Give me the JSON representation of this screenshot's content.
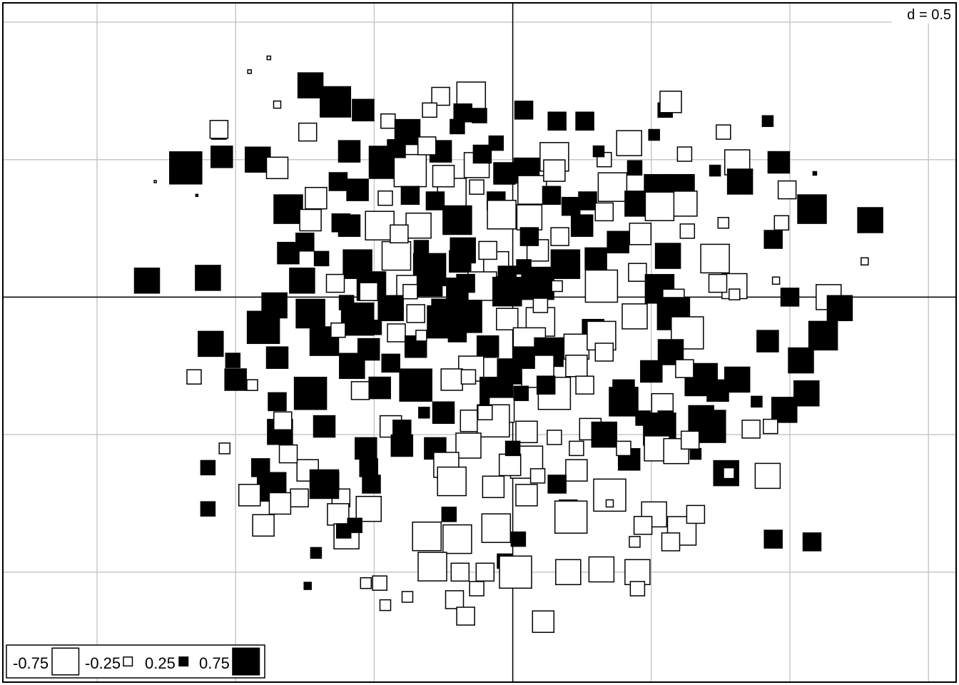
{
  "chart_data": {
    "type": "scatter",
    "subtype": "value-squares",
    "scale_label": "d = 0.5",
    "grid_step": 0.5,
    "x_range": [
      -1.84,
      1.6
    ],
    "y_range": [
      -1.4,
      1.07
    ],
    "grid": true,
    "legend_placement": "bottom-left",
    "legend": [
      {
        "label": "-0.75",
        "value": -0.75
      },
      {
        "label": "-0.25",
        "value": -0.25
      },
      {
        "label": "0.25",
        "value": 0.25
      },
      {
        "label": "0.75",
        "value": 0.75
      }
    ],
    "encoding": "square side proportional to |value|; white fill = negative, black fill = positive",
    "points": [
      [
        -0.88,
        0.87,
        -0.1
      ],
      [
        -0.73,
        0.77,
        0.7
      ],
      [
        -0.64,
        0.71,
        0.85
      ],
      [
        -0.54,
        0.68,
        0.6
      ],
      [
        -0.15,
        0.73,
        -0.8
      ],
      [
        0.04,
        0.68,
        0.5
      ],
      [
        -0.74,
        0.6,
        -0.5
      ],
      [
        -0.45,
        0.64,
        -0.4
      ],
      [
        -0.38,
        0.6,
        0.7
      ],
      [
        -0.18,
        0.67,
        0.5
      ],
      [
        0.26,
        0.64,
        0.5
      ],
      [
        0.42,
        0.56,
        -0.7
      ],
      [
        0.51,
        0.59,
        0.3
      ],
      [
        -1.06,
        0.6,
        -0.4
      ],
      [
        -0.92,
        0.5,
        0.7
      ],
      [
        -0.85,
        0.47,
        -0.6
      ],
      [
        -0.59,
        0.53,
        0.6
      ],
      [
        -0.46,
        0.49,
        0.9
      ],
      [
        -0.37,
        0.46,
        -0.9
      ],
      [
        -0.26,
        0.53,
        0.6
      ],
      [
        -0.13,
        0.48,
        -0.7
      ],
      [
        -0.03,
        0.45,
        0.6
      ],
      [
        0.05,
        0.46,
        0.7
      ],
      [
        0.15,
        0.51,
        -0.8
      ],
      [
        0.33,
        0.5,
        -0.4
      ],
      [
        0.62,
        0.52,
        -0.4
      ],
      [
        0.73,
        0.46,
        0.3
      ],
      [
        -0.71,
        0.36,
        -0.6
      ],
      [
        -0.56,
        0.39,
        0.6
      ],
      [
        -0.46,
        0.36,
        -0.4
      ],
      [
        -0.37,
        0.37,
        0.5
      ],
      [
        -0.22,
        0.38,
        -0.8
      ],
      [
        -0.06,
        0.35,
        0.5
      ],
      [
        0.07,
        0.39,
        -0.8
      ],
      [
        0.27,
        0.35,
        0.5
      ],
      [
        0.36,
        0.4,
        -0.8
      ],
      [
        0.45,
        0.34,
        0.7
      ],
      [
        0.61,
        0.4,
        0.7
      ],
      [
        0.62,
        0.34,
        -0.7
      ],
      [
        -0.81,
        0.32,
        0.8
      ],
      [
        -0.73,
        0.28,
        -0.6
      ],
      [
        -0.59,
        0.26,
        0.6
      ],
      [
        -0.48,
        0.26,
        -0.8
      ],
      [
        -0.34,
        0.26,
        -0.7
      ],
      [
        -0.2,
        0.28,
        0.8
      ],
      [
        -0.04,
        0.3,
        -0.8
      ],
      [
        0.06,
        0.29,
        -0.7
      ],
      [
        0.25,
        0.26,
        0.6
      ],
      [
        0.38,
        0.2,
        0.6
      ],
      [
        0.46,
        0.23,
        -0.6
      ],
      [
        0.63,
        0.24,
        -0.4
      ],
      [
        -0.75,
        0.2,
        0.5
      ],
      [
        -0.56,
        0.12,
        0.8
      ],
      [
        -0.42,
        0.15,
        -0.8
      ],
      [
        -0.3,
        0.1,
        0.9
      ],
      [
        -0.19,
        0.13,
        0.6
      ],
      [
        -0.06,
        0.12,
        -0.7
      ],
      [
        0.09,
        0.17,
        -0.6
      ],
      [
        0.19,
        0.12,
        0.8
      ],
      [
        0.3,
        0.14,
        0.6
      ],
      [
        0.45,
        0.09,
        -0.5
      ],
      [
        0.56,
        0.15,
        0.7
      ],
      [
        0.73,
        0.14,
        -0.8
      ],
      [
        -0.76,
        0.06,
        0.7
      ],
      [
        -0.64,
        0.05,
        -0.5
      ],
      [
        -0.51,
        0.04,
        0.8
      ],
      [
        -0.38,
        0.04,
        -0.6
      ],
      [
        -0.3,
        0.05,
        0.7
      ],
      [
        -0.2,
        0.03,
        0.6
      ],
      [
        -0.11,
        0.04,
        -0.8
      ],
      [
        -0.02,
        0.02,
        0.8
      ],
      [
        0.09,
        0.05,
        0.9
      ],
      [
        0.32,
        0.04,
        -0.9
      ],
      [
        0.53,
        0.03,
        0.8
      ],
      [
        0.58,
        -0.01,
        -0.6
      ],
      [
        0.8,
        0.04,
        -0.7
      ],
      [
        -1.1,
        0.07,
        0.7
      ],
      [
        -0.86,
        -0.03,
        0.7
      ],
      [
        -0.73,
        -0.06,
        0.8
      ],
      [
        -0.56,
        -0.08,
        0.9
      ],
      [
        -0.44,
        -0.04,
        0.7
      ],
      [
        -0.25,
        -0.09,
        0.9
      ],
      [
        -0.17,
        -0.07,
        0.9
      ],
      [
        -0.02,
        -0.08,
        -0.6
      ],
      [
        0.1,
        -0.09,
        -0.8
      ],
      [
        0.29,
        -0.12,
        0.6
      ],
      [
        0.44,
        -0.07,
        -0.7
      ],
      [
        0.58,
        -0.06,
        0.9
      ],
      [
        0.63,
        -0.13,
        -0.9
      ],
      [
        -0.9,
        -0.11,
        0.9
      ],
      [
        -0.68,
        -0.16,
        0.8
      ],
      [
        -0.52,
        -0.19,
        0.6
      ],
      [
        -0.42,
        -0.13,
        -0.5
      ],
      [
        -0.35,
        -0.18,
        0.6
      ],
      [
        -0.09,
        -0.18,
        0.6
      ],
      [
        0.06,
        -0.17,
        -0.9
      ],
      [
        0.13,
        -0.2,
        0.8
      ],
      [
        0.23,
        -0.18,
        -0.7
      ],
      [
        0.32,
        -0.14,
        -0.8
      ],
      [
        0.57,
        -0.2,
        0.7
      ],
      [
        0.92,
        -0.16,
        0.6
      ],
      [
        1.12,
        -0.14,
        0.8
      ],
      [
        -0.85,
        -0.22,
        0.6
      ],
      [
        -0.58,
        -0.25,
        0.7
      ],
      [
        -0.15,
        -0.26,
        -0.7
      ],
      [
        -0.01,
        -0.27,
        0.7
      ],
      [
        0.09,
        -0.27,
        -0.9
      ],
      [
        0.23,
        -0.25,
        -0.6
      ],
      [
        0.4,
        -0.34,
        0.6
      ],
      [
        0.5,
        -0.27,
        0.6
      ],
      [
        -0.73,
        -0.35,
        0.9
      ],
      [
        -0.55,
        -0.34,
        -0.5
      ],
      [
        -0.48,
        -0.33,
        0.6
      ],
      [
        -0.35,
        -0.32,
        0.9
      ],
      [
        -0.22,
        -0.3,
        -0.6
      ],
      [
        -0.06,
        -0.35,
        0.9
      ],
      [
        -0.04,
        -0.41,
        -0.7
      ],
      [
        0.15,
        -0.35,
        -0.9
      ],
      [
        0.4,
        -0.38,
        0.8
      ],
      [
        0.54,
        -0.39,
        -0.6
      ],
      [
        0.81,
        -0.3,
        0.7
      ],
      [
        0.98,
        -0.41,
        0.7
      ],
      [
        -0.44,
        -0.47,
        -0.6
      ],
      [
        -0.25,
        -0.42,
        0.6
      ],
      [
        -0.15,
        -0.45,
        -0.6
      ],
      [
        -0.07,
        -0.45,
        -0.9
      ],
      [
        0.05,
        -0.49,
        -0.6
      ],
      [
        0.28,
        -0.48,
        -0.6
      ],
      [
        0.33,
        -0.5,
        0.7
      ],
      [
        0.53,
        -0.48,
        0.9
      ],
      [
        -0.84,
        -0.49,
        0.7
      ],
      [
        -0.68,
        -0.47,
        0.6
      ],
      [
        -0.53,
        -0.55,
        0.6
      ],
      [
        -0.4,
        -0.54,
        0.6
      ],
      [
        -0.28,
        -0.55,
        0.6
      ],
      [
        -0.16,
        -0.54,
        -0.7
      ],
      [
        0.05,
        -0.6,
        -0.9
      ],
      [
        0.23,
        -0.63,
        -0.6
      ],
      [
        0.52,
        -0.55,
        -0.7
      ],
      [
        0.77,
        -0.64,
        0.7
      ],
      [
        -0.74,
        -0.63,
        -0.6
      ],
      [
        -0.52,
        -0.62,
        0.5
      ],
      [
        -0.24,
        -0.61,
        -0.7
      ],
      [
        -0.01,
        -0.61,
        -0.6
      ],
      [
        0.23,
        -0.55,
        -0.4
      ],
      [
        0.42,
        -0.59,
        0.6
      ],
      [
        0.59,
        -0.56,
        -0.7
      ],
      [
        -0.77,
        -0.73,
        -0.5
      ],
      [
        -0.62,
        -0.73,
        -0.5
      ],
      [
        -0.52,
        -0.77,
        -0.7
      ],
      [
        -0.22,
        -0.67,
        -0.8
      ],
      [
        -0.07,
        -0.69,
        -0.6
      ],
      [
        0.05,
        -0.72,
        -0.6
      ],
      [
        0.35,
        -0.72,
        -0.9
      ],
      [
        0.51,
        -0.79,
        -0.7
      ],
      [
        0.92,
        -0.65,
        -0.7
      ],
      [
        -0.87,
        -0.69,
        0.8
      ],
      [
        -0.68,
        -0.68,
        0.8
      ],
      [
        -0.51,
        -0.68,
        0.5
      ],
      [
        -0.84,
        -0.75,
        -0.6
      ],
      [
        -0.63,
        -0.79,
        -0.6
      ],
      [
        -0.6,
        -0.87,
        -0.7
      ],
      [
        -0.31,
        -0.87,
        -0.8
      ],
      [
        -0.2,
        -0.88,
        -0.8
      ],
      [
        -0.06,
        -0.84,
        -0.8
      ],
      [
        0.02,
        -0.88,
        0.4
      ],
      [
        0.2,
        -0.77,
        -0.5
      ],
      [
        0.21,
        -0.8,
        -0.9
      ],
      [
        0.47,
        -0.83,
        -0.5
      ],
      [
        0.32,
        -0.99,
        -0.7
      ],
      [
        0.35,
        -0.75,
        -0.2
      ],
      [
        0.61,
        -0.85,
        -0.8
      ],
      [
        0.66,
        -0.79,
        -0.5
      ],
      [
        0.57,
        -0.89,
        -0.5
      ],
      [
        -0.29,
        -0.98,
        -0.8
      ],
      [
        -0.19,
        -1.0,
        -0.5
      ],
      [
        -0.1,
        -1.0,
        -0.5
      ],
      [
        -0.03,
        -0.96,
        0.4
      ],
      [
        0.01,
        -1.0,
        -0.9
      ],
      [
        0.2,
        -1.0,
        -0.7
      ],
      [
        0.45,
        -1.0,
        -0.7
      ],
      [
        0.44,
        -0.89,
        -0.3
      ],
      [
        0.94,
        -0.88,
        0.5
      ],
      [
        1.08,
        -0.89,
        0.5
      ],
      [
        -0.48,
        -1.04,
        -0.4
      ],
      [
        -0.21,
        -1.1,
        -0.5
      ],
      [
        -0.13,
        -1.06,
        -0.4
      ],
      [
        0.11,
        -1.18,
        -0.6
      ],
      [
        0.45,
        -1.06,
        -0.4
      ],
      [
        -0.17,
        -1.16,
        -0.5
      ],
      [
        -0.38,
        -1.09,
        -0.3
      ],
      [
        -0.46,
        -1.12,
        -0.3
      ],
      [
        -0.85,
        0.7,
        -0.2
      ],
      [
        -0.95,
        0.82,
        -0.1
      ],
      [
        -1.06,
        0.61,
        -0.5
      ],
      [
        -1.29,
        0.42,
        -0.05
      ],
      [
        -1.18,
        0.47,
        0.9
      ],
      [
        -1.05,
        0.51,
        0.6
      ],
      [
        -1.14,
        0.37,
        0.05
      ],
      [
        -1.32,
        0.06,
        0.7
      ],
      [
        -1.09,
        -0.17,
        0.7
      ],
      [
        -1.15,
        -0.29,
        -0.4
      ],
      [
        -1.01,
        -0.23,
        0.4
      ],
      [
        -0.94,
        -0.32,
        -0.3
      ],
      [
        -1.0,
        -0.3,
        0.6
      ],
      [
        -0.85,
        -0.38,
        0.5
      ],
      [
        -0.83,
        -0.45,
        -0.5
      ],
      [
        -0.61,
        -0.85,
        0.4
      ],
      [
        -0.71,
        -0.93,
        0.3
      ],
      [
        -0.74,
        -1.05,
        0.2
      ],
      [
        -0.53,
        -1.04,
        -0.3
      ],
      [
        -0.57,
        -0.83,
        0.4
      ],
      [
        -0.66,
        -0.67,
        0.5
      ],
      [
        -1.1,
        -0.77,
        0.4
      ],
      [
        -0.95,
        -0.72,
        -0.6
      ],
      [
        -0.9,
        -0.83,
        -0.6
      ],
      [
        -1.1,
        -0.62,
        0.4
      ],
      [
        -0.91,
        -0.62,
        0.5
      ],
      [
        -1.04,
        -0.55,
        -0.3
      ],
      [
        -0.81,
        -0.57,
        -0.5
      ],
      [
        0.55,
        0.68,
        0.4
      ],
      [
        0.76,
        0.6,
        -0.4
      ],
      [
        0.57,
        0.71,
        -0.6
      ],
      [
        0.92,
        0.64,
        0.3
      ],
      [
        0.81,
        0.49,
        -0.7
      ],
      [
        0.82,
        0.42,
        0.7
      ],
      [
        0.96,
        0.49,
        0.6
      ],
      [
        0.99,
        0.39,
        -0.5
      ],
      [
        0.97,
        0.27,
        -0.4
      ],
      [
        0.94,
        0.21,
        0.5
      ],
      [
        0.74,
        0.05,
        -0.5
      ],
      [
        0.8,
        0.01,
        -0.3
      ],
      [
        0.95,
        0.06,
        -0.2
      ],
      [
        1.0,
        0.0,
        0.5
      ],
      [
        1.09,
        0.45,
        0.1
      ],
      [
        1.08,
        0.32,
        0.8
      ],
      [
        1.29,
        0.28,
        0.7
      ],
      [
        1.27,
        0.13,
        -0.2
      ],
      [
        0.76,
        0.27,
        -0.3
      ],
      [
        1.14,
        0.0,
        -0.7
      ],
      [
        1.18,
        -0.04,
        0.7
      ],
      [
        1.04,
        -0.23,
        0.7
      ],
      [
        1.06,
        -0.35,
        0.7
      ],
      [
        0.88,
        -0.38,
        0.3
      ],
      [
        0.86,
        -0.48,
        -0.5
      ],
      [
        0.93,
        -0.47,
        -0.4
      ],
      [
        0.68,
        -0.44,
        0.7
      ],
      [
        0.71,
        -0.47,
        0.9
      ],
      [
        0.68,
        -0.3,
        0.9
      ],
      [
        0.74,
        -0.34,
        0.6
      ],
      [
        0.78,
        -0.64,
        -0.3
      ],
      [
        0.62,
        -0.26,
        -0.5
      ],
      [
        0.52,
        0.4,
        0.7
      ],
      [
        0.53,
        0.33,
        -0.8
      ],
      [
        0.44,
        0.47,
        0.4
      ],
      [
        0.31,
        0.53,
        0.3
      ],
      [
        0.16,
        0.64,
        0.5
      ],
      [
        -0.2,
        0.62,
        0.4
      ],
      [
        -0.26,
        0.73,
        -0.5
      ],
      [
        -0.3,
        0.68,
        -0.4
      ],
      [
        -0.12,
        0.66,
        0.4
      ],
      [
        -0.06,
        0.56,
        0.4
      ],
      [
        0.15,
        0.46,
        -0.6
      ],
      [
        0.14,
        0.37,
        0.5
      ],
      [
        -0.25,
        0.44,
        -0.6
      ],
      [
        -0.13,
        0.4,
        -0.4
      ],
      [
        -0.28,
        0.35,
        0.5
      ],
      [
        0.21,
        0.33,
        0.5
      ],
      [
        0.33,
        0.31,
        -0.5
      ],
      [
        0.17,
        0.22,
        -0.5
      ],
      [
        0.06,
        0.22,
        0.5
      ],
      [
        -0.18,
        0.17,
        0.7
      ],
      [
        -0.09,
        0.17,
        -0.5
      ],
      [
        -0.17,
        0.05,
        0.5
      ],
      [
        -0.02,
        0.08,
        0.5
      ],
      [
        0.04,
        0.11,
        0.4
      ],
      [
        0.16,
        0.04,
        -0.3
      ],
      [
        -0.2,
        -0.13,
        0.5
      ],
      [
        -0.26,
        -0.04,
        0.5
      ],
      [
        -0.33,
        -0.14,
        -0.3
      ],
      [
        0.04,
        -0.22,
        0.6
      ],
      [
        -0.35,
        -0.06,
        -0.5
      ],
      [
        -0.5,
        -0.11,
        0.4
      ],
      [
        -0.44,
        -0.24,
        0.5
      ],
      [
        -0.63,
        -0.12,
        -0.4
      ],
      [
        -0.6,
        -0.02,
        0.4
      ],
      [
        -0.71,
        -0.07,
        0.4
      ],
      [
        -0.69,
        0.14,
        0.4
      ],
      [
        -0.62,
        0.27,
        0.5
      ],
      [
        -0.81,
        0.16,
        0.6
      ],
      [
        -0.63,
        0.42,
        0.5
      ],
      [
        -0.42,
        0.54,
        0.5
      ],
      [
        -0.31,
        0.55,
        -0.5
      ],
      [
        -0.11,
        0.52,
        0.5
      ],
      [
        -0.41,
        0.23,
        -0.5
      ],
      [
        -0.33,
        0.18,
        0.4
      ],
      [
        -0.37,
        0.02,
        -0.4
      ],
      [
        -0.52,
        0.02,
        -0.5
      ],
      [
        0.1,
        -0.03,
        -0.4
      ],
      [
        0.12,
        -0.32,
        0.5
      ],
      [
        0.26,
        -0.32,
        -0.5
      ],
      [
        0.33,
        -0.2,
        -0.5
      ],
      [
        0.03,
        -0.35,
        0.4
      ],
      [
        -0.1,
        -0.42,
        -0.4
      ],
      [
        -0.32,
        -0.42,
        0.3
      ],
      [
        -0.4,
        -0.48,
        0.5
      ],
      [
        -0.16,
        -0.29,
        -0.4
      ],
      [
        0.15,
        -0.51,
        -0.4
      ],
      [
        0.4,
        -0.55,
        -0.4
      ],
      [
        0.47,
        -0.44,
        0.4
      ],
      [
        0.55,
        -0.44,
        0.4
      ],
      [
        0.66,
        -0.57,
        0.3
      ],
      [
        0.64,
        -0.52,
        -0.5
      ],
      [
        -0.23,
        -0.79,
        0.4
      ],
      [
        0.0,
        -0.55,
        0.4
      ],
      [
        0.16,
        -0.68,
        0.5
      ],
      [
        0.09,
        -0.65,
        -0.4
      ]
    ]
  }
}
